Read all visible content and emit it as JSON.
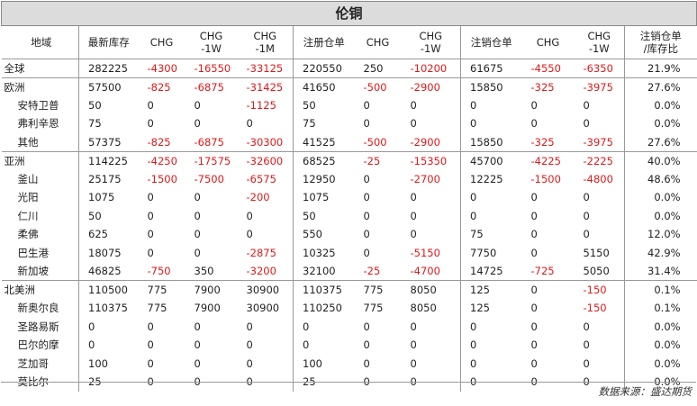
{
  "title": "伦铜",
  "headers": [
    "地域",
    "最新库存",
    "CHG",
    "CHG\n-1W",
    "CHG\n-1M",
    "注册仓单",
    "CHG",
    "CHG\n-1W",
    "注销仓单",
    "CHG",
    "CHG\n-1W",
    "注销仓单\n/库存比"
  ],
  "rows": [
    {
      "region": "全球",
      "indent": false,
      "group_start": true,
      "values": [
        "282225",
        "-4300",
        "-16550",
        "-33125",
        "220550",
        "250",
        "-10200",
        "61675",
        "-4550",
        "-6350",
        "21.9%"
      ]
    },
    {
      "region": "欧洲",
      "indent": false,
      "group_start": true,
      "values": [
        "57500",
        "-825",
        "-6875",
        "-31425",
        "41650",
        "-500",
        "-2900",
        "15850",
        "-325",
        "-3975",
        "27.6%"
      ]
    },
    {
      "region": "安特卫普",
      "indent": true,
      "group_start": false,
      "values": [
        "50",
        "0",
        "0",
        "-1125",
        "50",
        "0",
        "0",
        "0",
        "0",
        "0",
        "0.0%"
      ]
    },
    {
      "region": "弗利辛恩",
      "indent": true,
      "group_start": false,
      "values": [
        "75",
        "0",
        "0",
        "0",
        "75",
        "0",
        "0",
        "0",
        "0",
        "0",
        "0.0%"
      ]
    },
    {
      "region": "其他",
      "indent": true,
      "group_start": false,
      "values": [
        "57375",
        "-825",
        "-6875",
        "-30300",
        "41525",
        "-500",
        "-2900",
        "15850",
        "-325",
        "-3975",
        "27.6%"
      ]
    },
    {
      "region": "亚洲",
      "indent": false,
      "group_start": true,
      "values": [
        "114225",
        "-4250",
        "-17575",
        "-32600",
        "68525",
        "-25",
        "-15350",
        "45700",
        "-4225",
        "-2225",
        "40.0%"
      ]
    },
    {
      "region": "釜山",
      "indent": true,
      "group_start": false,
      "values": [
        "25175",
        "-1500",
        "-7500",
        "-6575",
        "12950",
        "0",
        "-2700",
        "12225",
        "-1500",
        "-4800",
        "48.6%"
      ]
    },
    {
      "region": "光阳",
      "indent": true,
      "group_start": false,
      "values": [
        "1075",
        "0",
        "0",
        "-200",
        "1075",
        "0",
        "0",
        "0",
        "0",
        "0",
        "0.0%"
      ]
    },
    {
      "region": "仁川",
      "indent": true,
      "group_start": false,
      "values": [
        "50",
        "0",
        "0",
        "0",
        "50",
        "0",
        "0",
        "0",
        "0",
        "0",
        "0.0%"
      ]
    },
    {
      "region": "柔佛",
      "indent": true,
      "group_start": false,
      "values": [
        "625",
        "0",
        "0",
        "0",
        "550",
        "0",
        "0",
        "75",
        "0",
        "0",
        "12.0%"
      ]
    },
    {
      "region": "巴生港",
      "indent": true,
      "group_start": false,
      "values": [
        "18075",
        "0",
        "0",
        "-2875",
        "10325",
        "0",
        "-5150",
        "7750",
        "0",
        "5150",
        "42.9%"
      ]
    },
    {
      "region": "新加坡",
      "indent": true,
      "group_start": false,
      "values": [
        "46825",
        "-750",
        "350",
        "-3200",
        "32100",
        "-25",
        "-4700",
        "14725",
        "-725",
        "5050",
        "31.4%"
      ]
    },
    {
      "region": "北美洲",
      "indent": false,
      "group_start": true,
      "values": [
        "110500",
        "775",
        "7900",
        "30900",
        "110375",
        "775",
        "8050",
        "125",
        "0",
        "-150",
        "0.1%"
      ]
    },
    {
      "region": "新奥尔良",
      "indent": true,
      "group_start": false,
      "values": [
        "110375",
        "775",
        "7900",
        "30900",
        "110250",
        "775",
        "8050",
        "125",
        "0",
        "-150",
        "0.1%"
      ]
    },
    {
      "region": "圣路易斯",
      "indent": true,
      "group_start": false,
      "values": [
        "0",
        "0",
        "0",
        "0",
        "0",
        "0",
        "0",
        "0",
        "0",
        "0",
        "0.0%"
      ]
    },
    {
      "region": "巴尔的摩",
      "indent": true,
      "group_start": false,
      "values": [
        "0",
        "0",
        "0",
        "0",
        "0",
        "0",
        "0",
        "0",
        "0",
        "0",
        "0.0%"
      ]
    },
    {
      "region": "芝加哥",
      "indent": true,
      "group_start": false,
      "values": [
        "100",
        "0",
        "0",
        "0",
        "100",
        "0",
        "0",
        "0",
        "0",
        "0",
        "0.0%"
      ]
    },
    {
      "region": "莫比尔",
      "indent": true,
      "group_start": false,
      "values": [
        "25",
        "0",
        "0",
        "0",
        "25",
        "0",
        "0",
        "0",
        "0",
        "0",
        "0.0%"
      ]
    }
  ],
  "source": "数据来源：盛达期货",
  "colors": {
    "negative": "#e0191a",
    "title_bg": "#dcdcdc"
  }
}
